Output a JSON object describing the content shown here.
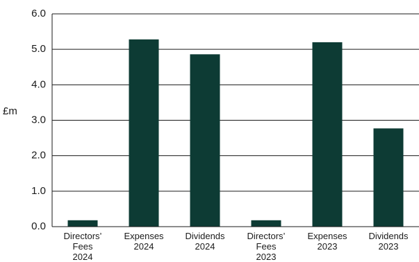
{
  "chart_data": {
    "type": "bar",
    "title": "",
    "xlabel": "",
    "ylabel": "£m",
    "ylim": [
      0,
      6
    ],
    "yticks": [
      "0.0",
      "1.0",
      "2.0",
      "3.0",
      "4.0",
      "5.0",
      "6.0"
    ],
    "grid": true,
    "legend": "none",
    "categories": [
      [
        "Directors’",
        "Fees",
        "2024"
      ],
      [
        "Expenses",
        "2024"
      ],
      [
        "Dividends",
        "2024"
      ],
      [
        "Directors’",
        "Fees",
        "2023"
      ],
      [
        "Expenses",
        "2023"
      ],
      [
        "Dividends",
        "2023"
      ]
    ],
    "values": [
      0.18,
      5.28,
      4.86,
      0.18,
      5.2,
      2.77
    ],
    "colors": {
      "bar": "#0d3b34",
      "grid": "#1a1a1a",
      "axis": "#1a1a1a"
    }
  }
}
